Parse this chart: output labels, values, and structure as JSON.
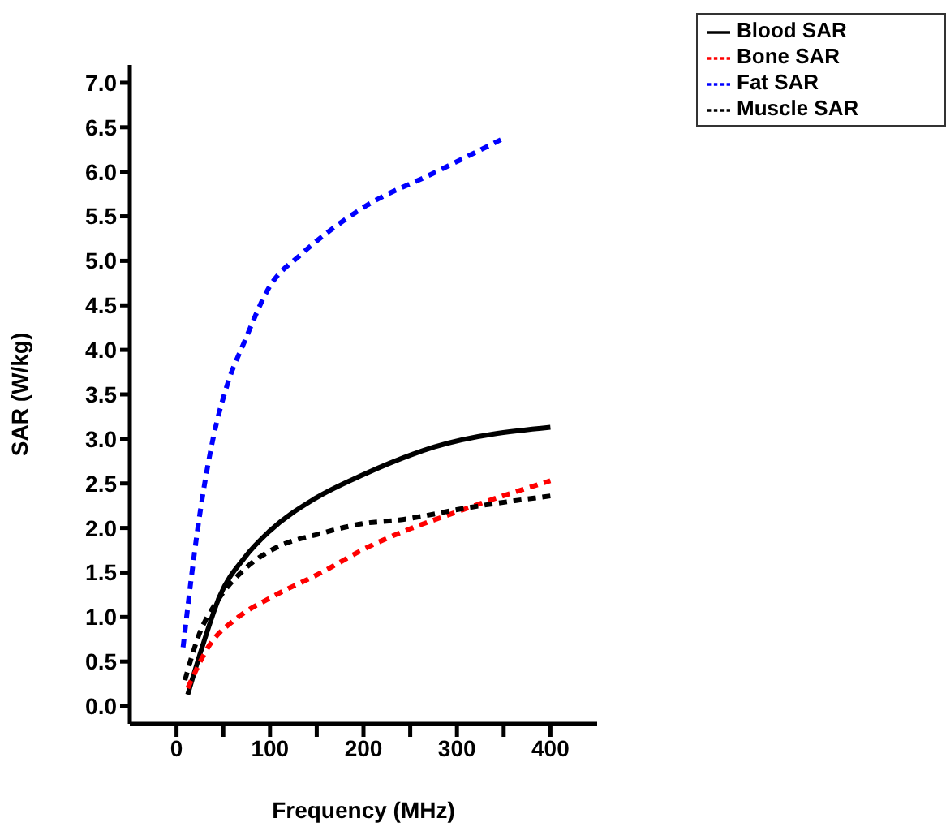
{
  "chart_data": {
    "type": "line",
    "xlabel": "Frequency (MHz)",
    "ylabel": "SAR (W/kg)",
    "xlim": [
      -50,
      450
    ],
    "xticks": [
      0,
      {
        "value": 50,
        "label": null
      },
      100,
      {
        "value": 150,
        "label": null
      },
      200,
      {
        "value": 250,
        "label": null
      },
      300,
      {
        "value": 350,
        "label": null
      },
      400
    ],
    "ylim": [
      -0.2,
      7.2
    ],
    "yticks": [
      {
        "value": 0,
        "label": "0.0"
      },
      0.5,
      {
        "value": 1,
        "label": "1.0"
      },
      1.5,
      {
        "value": 2,
        "label": "2.0"
      },
      2.5,
      {
        "value": 3,
        "label": "3.0"
      },
      3.5,
      {
        "value": 4,
        "label": "4.0"
      },
      4.5,
      {
        "value": 5,
        "label": "5.0"
      },
      5.5,
      {
        "value": 6,
        "label": "6.0"
      },
      6.5,
      {
        "value": 7,
        "label": "7.0"
      }
    ],
    "grid": false,
    "legend": "top right",
    "marker": "none",
    "series": [
      {
        "name": "Blood SAR",
        "color": "#000000",
        "line_style": "solid",
        "x": [
          12,
          28,
          46,
          73,
          99,
          148,
          200,
          276,
          400
        ],
        "values": [
          0.13,
          0.68,
          1.23,
          1.67,
          1.96,
          2.33,
          2.6,
          2.91,
          3.13
        ]
      },
      {
        "name": "Bone SAR",
        "color": "#ff0000",
        "line_style": "dashed",
        "x": [
          12,
          35,
          65,
          103,
          155,
          200,
          313,
          400
        ],
        "values": [
          0.2,
          0.68,
          0.99,
          1.23,
          1.5,
          1.76,
          2.23,
          2.53
        ]
      },
      {
        "name": "Fat SAR",
        "color": "#0000ff",
        "line_style": "dashed",
        "x": [
          7,
          24,
          39,
          54,
          73,
          99,
          133,
          163,
          200,
          276,
          347
        ],
        "values": [
          0.66,
          2.09,
          3.0,
          3.6,
          4.1,
          4.7,
          5.07,
          5.33,
          5.6,
          5.99,
          6.36
        ]
      },
      {
        "name": "Muscle SAR",
        "color": "#000000",
        "line_style": "dashed",
        "x": [
          9,
          24,
          43,
          73,
          103,
          155,
          200,
          238,
          313,
          400
        ],
        "values": [
          0.29,
          0.8,
          1.17,
          1.54,
          1.76,
          1.94,
          2.05,
          2.09,
          2.23,
          2.36
        ]
      }
    ]
  }
}
